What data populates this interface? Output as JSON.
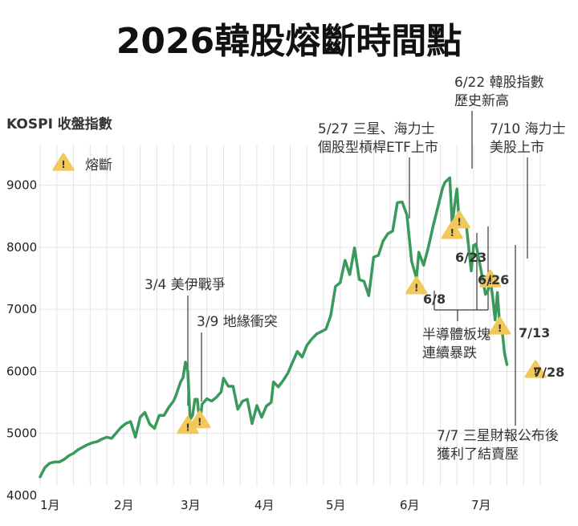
{
  "title": "2026韓股熔斷時間點",
  "legend": {
    "label": "熔斷",
    "icon": "warning-triangle-icon"
  },
  "colors": {
    "line": "#3a9a5b",
    "warning_fill": "#f2c85b",
    "grid": "#e3e3e3",
    "leader": "#444444"
  },
  "chart_data": {
    "type": "line",
    "title": "2026韓股熔斷時間點",
    "ylabel": "KOSPI 收盤指數",
    "ylim": [
      4000,
      9500
    ],
    "yticks": [
      4000,
      5000,
      6000,
      7000,
      8000,
      9000
    ],
    "x_month_labels": [
      "1月",
      "2月",
      "3月",
      "4月",
      "5月",
      "6月",
      "7月"
    ],
    "x_month_starts": [
      "2026-01-01",
      "2026-02-01",
      "2026-03-01",
      "2026-04-01",
      "2026-05-01",
      "2026-06-01",
      "2026-07-01"
    ],
    "grid": true,
    "series": [
      {
        "points": [
          [
            "2026-01-01",
            4300
          ],
          [
            "2026-01-03",
            4450
          ],
          [
            "2026-01-05",
            4520
          ],
          [
            "2026-01-07",
            4540
          ],
          [
            "2026-01-09",
            4540
          ],
          [
            "2026-01-11",
            4580
          ],
          [
            "2026-01-13",
            4640
          ],
          [
            "2026-01-15",
            4680
          ],
          [
            "2026-01-17",
            4740
          ],
          [
            "2026-01-19",
            4780
          ],
          [
            "2026-01-21",
            4820
          ],
          [
            "2026-01-23",
            4850
          ],
          [
            "2026-01-25",
            4870
          ],
          [
            "2026-01-27",
            4910
          ],
          [
            "2026-01-29",
            4940
          ],
          [
            "2026-01-31",
            4920
          ],
          [
            "2026-02-02",
            5010
          ],
          [
            "2026-02-04",
            5100
          ],
          [
            "2026-02-06",
            5160
          ],
          [
            "2026-02-08",
            5190
          ],
          [
            "2026-02-10",
            4940
          ],
          [
            "2026-02-12",
            5260
          ],
          [
            "2026-02-14",
            5340
          ],
          [
            "2026-02-16",
            5150
          ],
          [
            "2026-02-18",
            5080
          ],
          [
            "2026-02-20",
            5290
          ],
          [
            "2026-02-22",
            5290
          ],
          [
            "2026-02-24",
            5420
          ],
          [
            "2026-02-26",
            5520
          ],
          [
            "2026-02-27",
            5610
          ],
          [
            "2026-03-01",
            5830
          ],
          [
            "2026-03-02",
            5900
          ],
          [
            "2026-03-03",
            6150
          ],
          [
            "2026-03-04",
            6000
          ],
          [
            "2026-03-05",
            5230
          ],
          [
            "2026-03-06",
            5290
          ],
          [
            "2026-03-07",
            5550
          ],
          [
            "2026-03-08",
            5550
          ],
          [
            "2026-03-09",
            5150
          ],
          [
            "2026-03-10",
            5470
          ],
          [
            "2026-03-12",
            5560
          ],
          [
            "2026-03-14",
            5520
          ],
          [
            "2026-03-16",
            5580
          ],
          [
            "2026-03-18",
            5670
          ],
          [
            "2026-03-19",
            5890
          ],
          [
            "2026-03-21",
            5760
          ],
          [
            "2026-03-23",
            5760
          ],
          [
            "2026-03-25",
            5390
          ],
          [
            "2026-03-27",
            5520
          ],
          [
            "2026-03-29",
            5550
          ],
          [
            "2026-03-31",
            5160
          ],
          [
            "2026-04-02",
            5450
          ],
          [
            "2026-04-04",
            5260
          ],
          [
            "2026-04-06",
            5440
          ],
          [
            "2026-04-08",
            5500
          ],
          [
            "2026-04-09",
            5830
          ],
          [
            "2026-04-11",
            5750
          ],
          [
            "2026-04-13",
            5850
          ],
          [
            "2026-04-15",
            5970
          ],
          [
            "2026-04-17",
            6150
          ],
          [
            "2026-04-19",
            6320
          ],
          [
            "2026-04-21",
            6230
          ],
          [
            "2026-04-23",
            6420
          ],
          [
            "2026-04-25",
            6520
          ],
          [
            "2026-04-27",
            6600
          ],
          [
            "2026-04-29",
            6640
          ],
          [
            "2026-05-01",
            6680
          ],
          [
            "2026-05-03",
            6900
          ],
          [
            "2026-05-05",
            7370
          ],
          [
            "2026-05-07",
            7430
          ],
          [
            "2026-05-09",
            7790
          ],
          [
            "2026-05-11",
            7560
          ],
          [
            "2026-05-13",
            7990
          ],
          [
            "2026-05-15",
            7480
          ],
          [
            "2026-05-17",
            7450
          ],
          [
            "2026-05-19",
            7220
          ],
          [
            "2026-05-21",
            7840
          ],
          [
            "2026-05-23",
            7870
          ],
          [
            "2026-05-25",
            8100
          ],
          [
            "2026-05-27",
            8220
          ],
          [
            "2026-05-29",
            8260
          ],
          [
            "2026-05-31",
            8720
          ],
          [
            "2026-06-02",
            8730
          ],
          [
            "2026-06-04",
            8520
          ],
          [
            "2026-06-06",
            7770
          ],
          [
            "2026-06-08",
            7500
          ],
          [
            "2026-06-09",
            7920
          ],
          [
            "2026-06-11",
            7710
          ],
          [
            "2026-06-13",
            8000
          ],
          [
            "2026-06-15",
            8340
          ],
          [
            "2026-06-17",
            8650
          ],
          [
            "2026-06-19",
            8960
          ],
          [
            "2026-06-20",
            9050
          ],
          [
            "2026-06-22",
            9120
          ],
          [
            "2026-06-23",
            8360
          ],
          [
            "2026-06-24",
            8670
          ],
          [
            "2026-06-25",
            8940
          ],
          [
            "2026-06-26",
            8370
          ],
          [
            "2026-06-27",
            8360
          ],
          [
            "2026-06-29",
            8330
          ],
          [
            "2026-07-01",
            7620
          ],
          [
            "2026-07-02",
            8030
          ],
          [
            "2026-07-03",
            8050
          ],
          [
            "2026-07-05",
            7650
          ],
          [
            "2026-07-07",
            7240
          ],
          [
            "2026-07-08",
            7300
          ],
          [
            "2026-07-09",
            7490
          ],
          [
            "2026-07-10",
            7200
          ],
          [
            "2026-07-11",
            6830
          ],
          [
            "2026-07-12",
            7270
          ],
          [
            "2026-07-13",
            6720
          ],
          [
            "2026-07-14",
            6650
          ],
          [
            "2026-07-15",
            6290
          ],
          [
            "2026-07-16",
            6110
          ]
        ]
      }
    ],
    "circuit_breakers": [
      {
        "date": "2026-03-04",
        "value": 5120,
        "label": ""
      },
      {
        "date": "2026-03-09",
        "value": 5210,
        "label": ""
      },
      {
        "date": "2026-06-08",
        "value": 7370,
        "label": "6/8"
      },
      {
        "date": "2026-06-23",
        "value": 8260,
        "label": "6/23"
      },
      {
        "date": "2026-06-26",
        "value": 8430,
        "label": "6/26"
      },
      {
        "date": "2026-07-09",
        "value": 7480,
        "label": ""
      },
      {
        "date": "2026-07-13",
        "value": 6720,
        "label": "7/13"
      },
      {
        "date": "2026-07-28",
        "value": 6020,
        "label": "7/28"
      }
    ],
    "annotations": [
      {
        "lines": [
          "3/4 美伊戰爭"
        ]
      },
      {
        "lines": [
          "3/9 地緣衝突"
        ]
      },
      {
        "lines": [
          "5/27 三星、海力士",
          "個股型槓桿ETF上市"
        ]
      },
      {
        "lines": [
          "6/22 韓股指數",
          "歷史新高"
        ]
      },
      {
        "lines": [
          "7/10 海力士",
          "美股上市"
        ]
      },
      {
        "lines": [
          "半導體板塊",
          "連續暴跌"
        ]
      },
      {
        "lines": [
          "7/7 三星財報公布後",
          "獲利了結賣壓"
        ]
      }
    ]
  }
}
